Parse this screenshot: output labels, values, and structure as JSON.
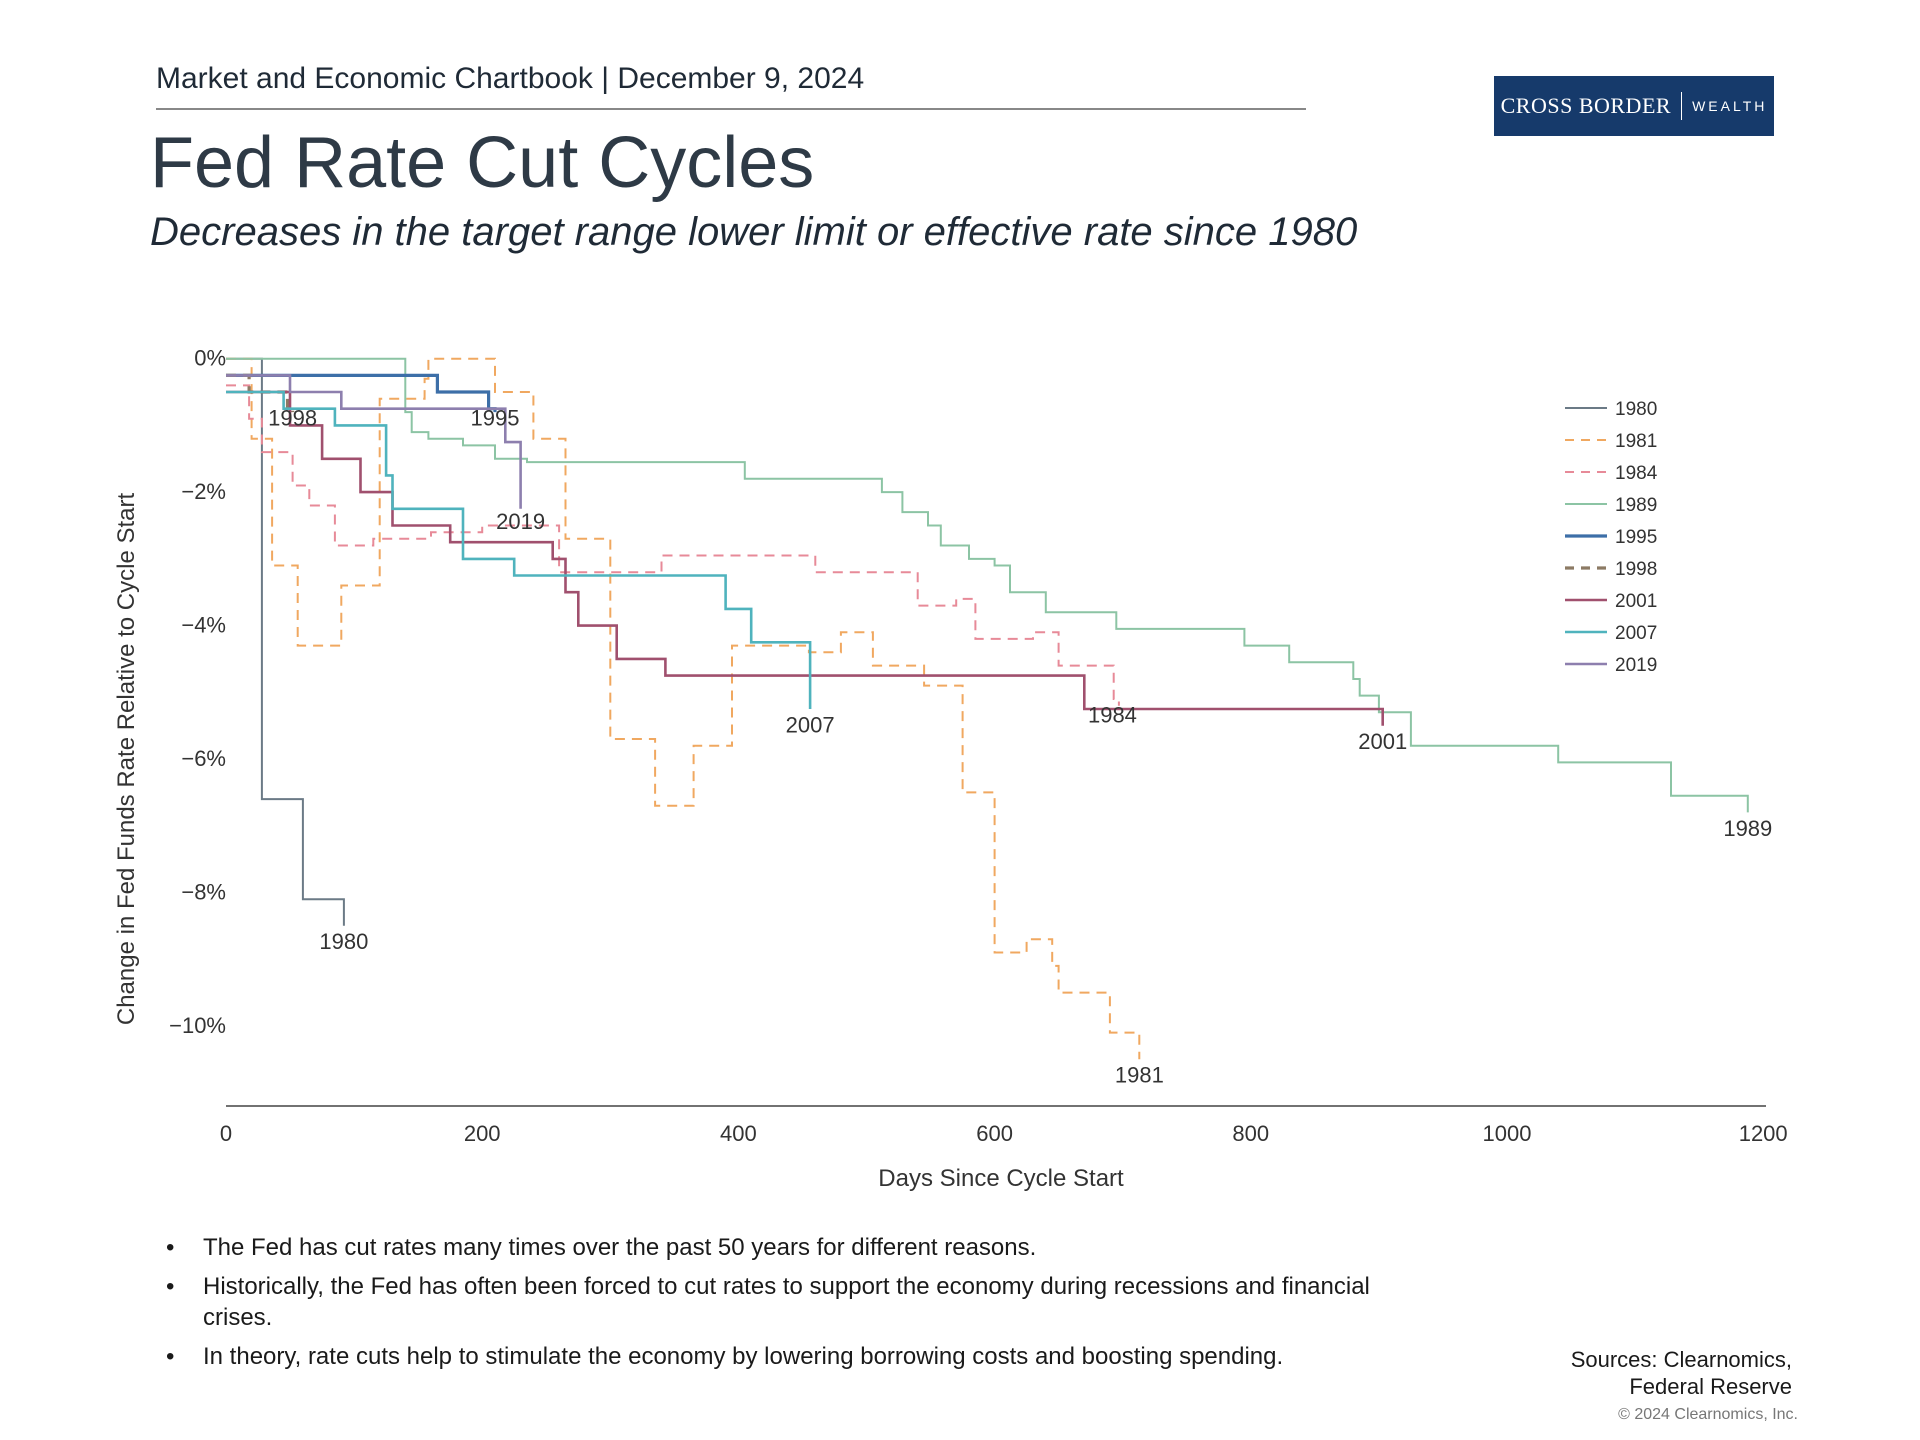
{
  "header": {
    "chartbook": "Market and Economic Chartbook | December 9, 2024",
    "title": "Fed Rate Cut Cycles",
    "subtitle": "Decreases in the target range lower limit or effective rate since 1980"
  },
  "logo": {
    "main": "CROSS BORDER",
    "sub": "WEALTH"
  },
  "chart_data": {
    "type": "line",
    "xlabel": "Days Since Cycle Start",
    "ylabel": "Change in Fed Funds Rate Relative to Cycle Start",
    "xlim": [
      0,
      1210
    ],
    "ylim": [
      -11.2,
      0.25
    ],
    "xticks": [
      0,
      200,
      400,
      600,
      800,
      1000,
      1200
    ],
    "xtick_labels": [
      "0",
      "200",
      "400",
      "600",
      "800",
      "1000",
      "1200"
    ],
    "yticks": [
      0,
      -2,
      -4,
      -6,
      -8,
      -10
    ],
    "ytick_labels": [
      "0%",
      "−2%",
      "−4%",
      "−6%",
      "−8%",
      "−10%"
    ],
    "legend_position": "right",
    "series": [
      {
        "name": "1980",
        "color": "#6b7a86",
        "dash": "solid",
        "width": 2,
        "steps": [
          [
            0,
            0
          ],
          [
            28,
            -6.6
          ],
          [
            60,
            -8.1
          ],
          [
            92,
            -8.5
          ]
        ]
      },
      {
        "name": "1981",
        "color": "#f0a860",
        "dash": "dashed",
        "width": 2,
        "steps": [
          [
            0,
            0
          ],
          [
            20,
            -1.2
          ],
          [
            36,
            -3.1
          ],
          [
            56,
            -4.3
          ],
          [
            90,
            -3.4
          ],
          [
            120,
            -0.6
          ],
          [
            155,
            -0.3
          ],
          [
            158,
            0
          ],
          [
            210,
            -0.5
          ],
          [
            240,
            -1.2
          ],
          [
            265,
            -2.7
          ],
          [
            300,
            -5.7
          ],
          [
            335,
            -6.7
          ],
          [
            365,
            -5.8
          ],
          [
            395,
            -4.3
          ],
          [
            455,
            -4.4
          ],
          [
            480,
            -4.1
          ],
          [
            505,
            -4.6
          ],
          [
            545,
            -4.9
          ],
          [
            575,
            -6.5
          ],
          [
            600,
            -8.9
          ],
          [
            625,
            -8.7
          ],
          [
            645,
            -9.1
          ],
          [
            650,
            -9.5
          ],
          [
            690,
            -10.1
          ],
          [
            713,
            -10.5
          ]
        ]
      },
      {
        "name": "1984",
        "color": "#e78a98",
        "dash": "dashed",
        "width": 2,
        "steps": [
          [
            0,
            -0.4
          ],
          [
            18,
            -0.9
          ],
          [
            28,
            -1.4
          ],
          [
            52,
            -1.9
          ],
          [
            65,
            -2.2
          ],
          [
            85,
            -2.8
          ],
          [
            108,
            -2.8
          ],
          [
            115,
            -2.7
          ],
          [
            160,
            -2.6
          ],
          [
            200,
            -2.5
          ],
          [
            260,
            -3.2
          ],
          [
            305,
            -3.2
          ],
          [
            340,
            -2.95
          ],
          [
            440,
            -2.95
          ],
          [
            460,
            -3.2
          ],
          [
            520,
            -3.2
          ],
          [
            540,
            -3.7
          ],
          [
            570,
            -3.6
          ],
          [
            585,
            -4.2
          ],
          [
            615,
            -4.2
          ],
          [
            630,
            -4.1
          ],
          [
            650,
            -4.6
          ],
          [
            690,
            -4.6
          ],
          [
            693,
            -5.1
          ],
          [
            697,
            -5.2
          ]
        ]
      },
      {
        "name": "1989",
        "color": "#8cc4a4",
        "dash": "solid",
        "width": 2,
        "steps": [
          [
            0,
            0
          ],
          [
            140,
            -0.8
          ],
          [
            145,
            -1.1
          ],
          [
            158,
            -1.2
          ],
          [
            185,
            -1.3
          ],
          [
            210,
            -1.5
          ],
          [
            235,
            -1.55
          ],
          [
            405,
            -1.8
          ],
          [
            512,
            -2.0
          ],
          [
            528,
            -2.3
          ],
          [
            548,
            -2.5
          ],
          [
            558,
            -2.8
          ],
          [
            580,
            -3.0
          ],
          [
            600,
            -3.1
          ],
          [
            612,
            -3.5
          ],
          [
            640,
            -3.8
          ],
          [
            695,
            -4.05
          ],
          [
            795,
            -4.3
          ],
          [
            830,
            -4.55
          ],
          [
            880,
            -4.8
          ],
          [
            885,
            -5.05
          ],
          [
            900,
            -5.3
          ],
          [
            925,
            -5.8
          ],
          [
            1040,
            -6.05
          ],
          [
            1128,
            -6.55
          ],
          [
            1188,
            -6.8
          ]
        ]
      },
      {
        "name": "1995",
        "color": "#3d6fa8",
        "dash": "solid",
        "width": 3.2,
        "steps": [
          [
            0,
            -0.25
          ],
          [
            165,
            -0.5
          ],
          [
            205,
            -0.75
          ],
          [
            210,
            -0.8
          ]
        ]
      },
      {
        "name": "1998",
        "color": "#8c7a64",
        "dash": "dashed",
        "width": 3.2,
        "steps": [
          [
            0,
            -0.25
          ],
          [
            18,
            -0.5
          ],
          [
            48,
            -0.75
          ],
          [
            52,
            -0.8
          ]
        ]
      },
      {
        "name": "2001",
        "color": "#a0506e",
        "dash": "solid",
        "width": 2.6,
        "steps": [
          [
            0,
            -0.5
          ],
          [
            50,
            -1.0
          ],
          [
            75,
            -1.5
          ],
          [
            105,
            -2.0
          ],
          [
            130,
            -2.5
          ],
          [
            175,
            -2.75
          ],
          [
            255,
            -3.0
          ],
          [
            265,
            -3.5
          ],
          [
            275,
            -4.0
          ],
          [
            305,
            -4.5
          ],
          [
            343,
            -4.75
          ],
          [
            670,
            -5.25
          ],
          [
            903,
            -5.5
          ]
        ]
      },
      {
        "name": "2007",
        "color": "#4fb3bd",
        "dash": "solid",
        "width": 2.6,
        "steps": [
          [
            0,
            -0.5
          ],
          [
            45,
            -0.75
          ],
          [
            85,
            -1.0
          ],
          [
            125,
            -1.75
          ],
          [
            130,
            -2.25
          ],
          [
            185,
            -3.0
          ],
          [
            225,
            -3.25
          ],
          [
            390,
            -3.75
          ],
          [
            410,
            -4.25
          ],
          [
            456,
            -5.25
          ]
        ]
      },
      {
        "name": "2019",
        "color": "#8d7fae",
        "dash": "solid",
        "width": 2.6,
        "steps": [
          [
            0,
            -0.25
          ],
          [
            50,
            -0.5
          ],
          [
            90,
            -0.75
          ],
          [
            218,
            -1.25
          ],
          [
            230,
            -2.25
          ]
        ]
      }
    ],
    "end_labels": [
      {
        "text": "1980",
        "x": 92,
        "y": -8.85
      },
      {
        "text": "1981",
        "x": 713,
        "y": -10.85
      },
      {
        "text": "1984",
        "x": 692,
        "y": -5.45
      },
      {
        "text": "1989",
        "x": 1188,
        "y": -7.15
      },
      {
        "text": "1995",
        "x": 210,
        "y": -1.0
      },
      {
        "text": "1998",
        "x": 52,
        "y": -1.0
      },
      {
        "text": "2001",
        "x": 903,
        "y": -5.85
      },
      {
        "text": "2007",
        "x": 456,
        "y": -5.6
      },
      {
        "text": "2019",
        "x": 230,
        "y": -2.55
      }
    ]
  },
  "bullets": [
    "The Fed has cut rates many times over the past 50 years for different reasons.",
    "Historically, the Fed has often been forced to cut rates to support the economy during recessions and financial crises.",
    "In theory, rate cuts help to stimulate the economy by lowering borrowing costs and boosting spending."
  ],
  "sources": {
    "line1": "Sources: Clearnomics,",
    "line2": "Federal Reserve"
  },
  "copyright": "© 2024 Clearnomics, Inc."
}
